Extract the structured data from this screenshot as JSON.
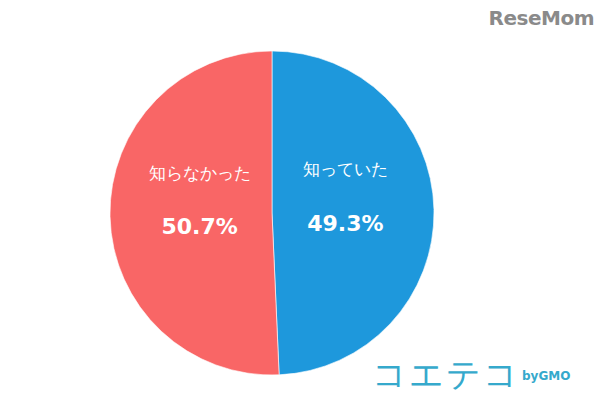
{
  "chart_data": {
    "type": "pie",
    "categories": [
      "知っていた",
      "知らなかった"
    ],
    "values": [
      49.3,
      50.7
    ],
    "value_labels": [
      "49.3%",
      "50.7%"
    ],
    "colors": [
      "#1e98dc",
      "#f96666"
    ],
    "data_labels": true,
    "annotations": [
      "ReseMom",
      "コエテコ",
      "byGMO"
    ]
  }
}
